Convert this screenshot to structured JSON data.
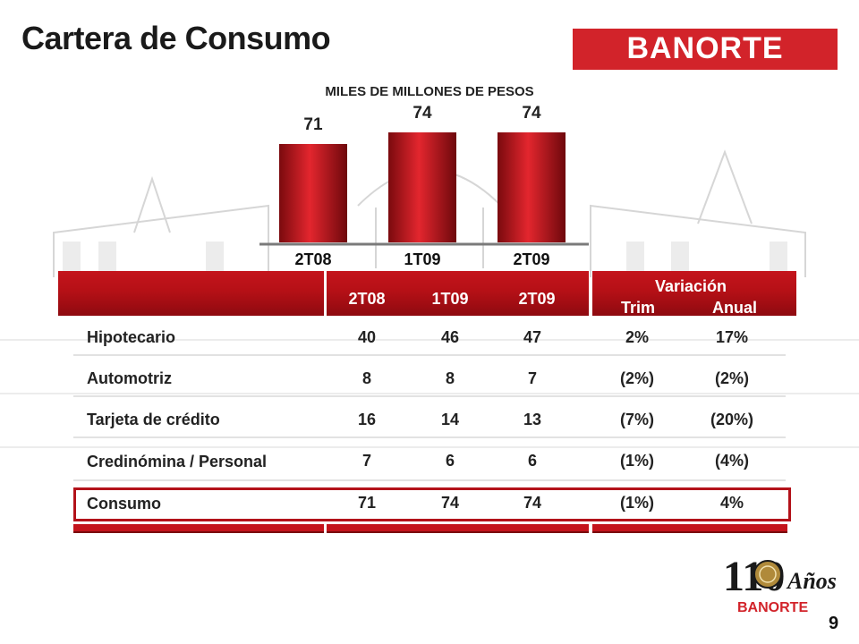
{
  "slide": {
    "title": "Cartera de Consumo",
    "page_number": "9",
    "brand": "BANORTE",
    "colors": {
      "accent": "#d2232a",
      "bar_dark": "#7a0a0e",
      "text": "#222222"
    }
  },
  "chart_data": {
    "type": "bar",
    "title": "MILES DE MILLONES DE PESOS",
    "categories": [
      "2T08",
      "1T09",
      "2T09"
    ],
    "values": [
      71,
      74,
      74
    ],
    "value_labels": [
      "71",
      "74",
      "74"
    ],
    "xlabel": "",
    "ylabel": "",
    "grid": false,
    "legend": "none"
  },
  "table": {
    "periods": [
      "2T08",
      "1T09",
      "2T09"
    ],
    "variation_header": "Variación",
    "variation_cols": [
      "Trim",
      "Anual"
    ],
    "rows": [
      {
        "label": "Hipotecario",
        "values": [
          "40",
          "46",
          "47"
        ],
        "trim": "2%",
        "anual": "17%"
      },
      {
        "label": "Automotriz",
        "values": [
          "8",
          "8",
          "7"
        ],
        "trim": "(2%)",
        "anual": "(2%)"
      },
      {
        "label": "Tarjeta de crédito",
        "values": [
          "16",
          "14",
          "13"
        ],
        "trim": "(7%)",
        "anual": "(20%)"
      },
      {
        "label": "Credinómina / Personal",
        "values": [
          "7",
          "6",
          "6"
        ],
        "trim": "(1%)",
        "anual": "(4%)"
      },
      {
        "label": "Consumo",
        "values": [
          "71",
          "74",
          "74"
        ],
        "trim": "(1%)",
        "anual": "4%"
      }
    ]
  },
  "badge": {
    "number": "110",
    "word": "Años",
    "brand": "BANORTE"
  }
}
